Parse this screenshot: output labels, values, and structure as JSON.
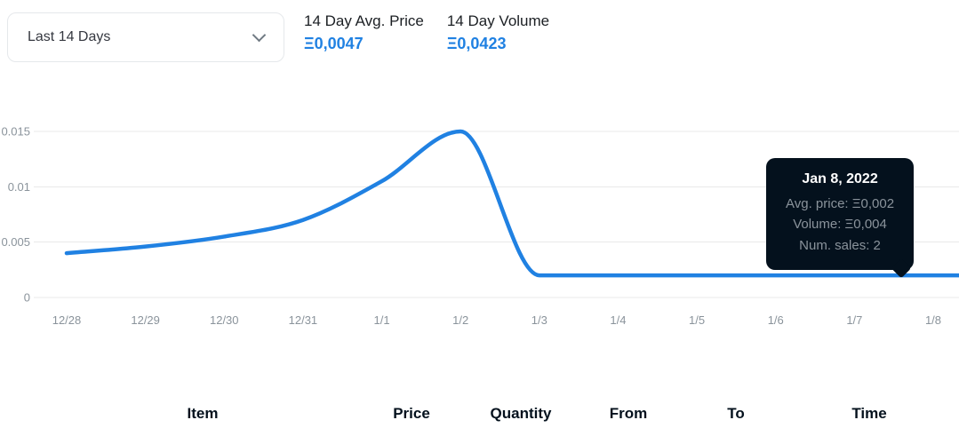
{
  "colors": {
    "accent": "#2081e2",
    "dark_text": "#04111d",
    "muted_text": "#8a939b",
    "tooltip_bg": "#04111d",
    "gridline": "#e9e9e9"
  },
  "range_selector": {
    "value": "Last 14 Days"
  },
  "stats": [
    {
      "label": "14 Day Avg. Price",
      "value": "Ξ0,0047"
    },
    {
      "label": "14 Day Volume",
      "value": "Ξ0,0423"
    }
  ],
  "tooltip": {
    "title": "Jan 8, 2022",
    "lines": [
      "Avg. price: Ξ0,002",
      "Volume: Ξ0,004",
      "Num. sales: 2"
    ]
  },
  "table": {
    "headers": [
      "Item",
      "Price",
      "Quantity",
      "From",
      "To",
      "Time"
    ]
  },
  "chart_data": {
    "type": "line",
    "title": "",
    "x": [
      "12/28",
      "12/29",
      "12/30",
      "12/31",
      "1/1",
      "1/2",
      "1/3",
      "1/4",
      "1/5",
      "1/6",
      "1/7",
      "1/8"
    ],
    "series": [
      {
        "name": "Avg. price (ETH)",
        "values": [
          0.004,
          0.0046,
          0.0055,
          0.007,
          0.0105,
          0.015,
          0.002,
          0.002,
          0.002,
          0.002,
          0.002,
          0.002
        ]
      }
    ],
    "ylim": [
      0,
      0.015
    ],
    "yticks": [
      0,
      0.005,
      0.01,
      0.015
    ],
    "ytick_labels": [
      "0",
      "0.005",
      "0.01",
      "0.015"
    ],
    "grid": true,
    "legend": false,
    "line_color": "#2081e2"
  }
}
